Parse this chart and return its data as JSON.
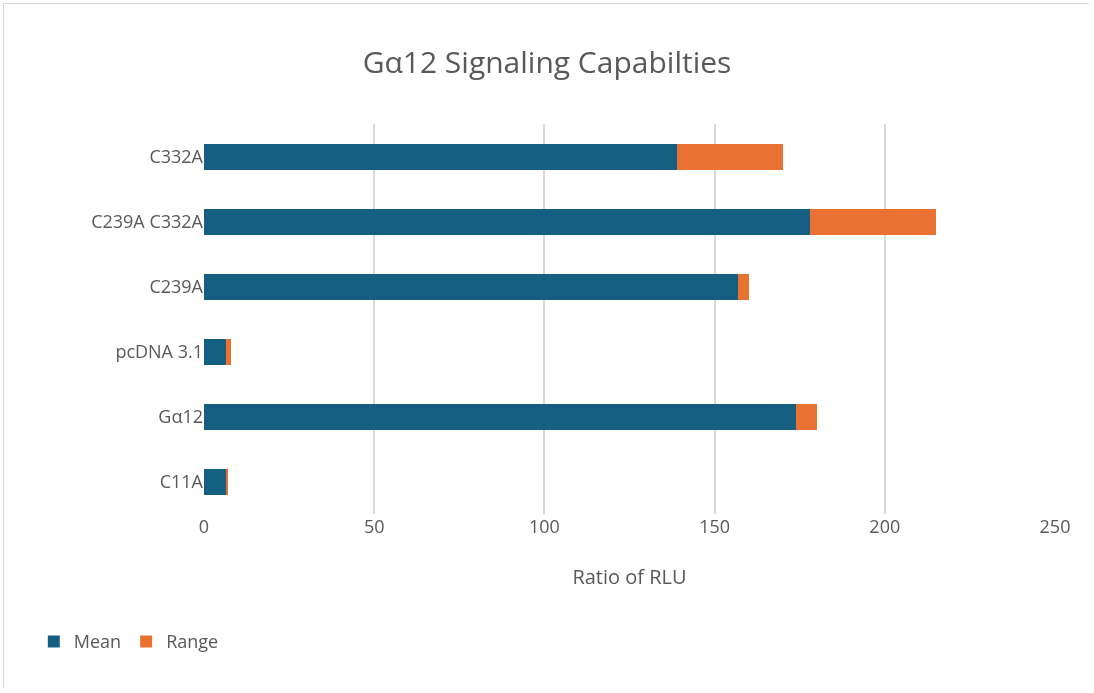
{
  "chart_data": {
    "type": "bar",
    "title": "Gα12 Signaling Capabilties",
    "xlabel": "Ratio of RLU",
    "orientation": "horizontal",
    "stacked": true,
    "categories": [
      "C332A",
      "C239A C332A",
      "C239A",
      "pcDNA 3.1",
      "Gα12",
      "C11A"
    ],
    "series": [
      {
        "name": "Mean",
        "color": "#156082",
        "values": [
          139,
          178,
          157,
          6.5,
          174,
          6.5
        ]
      },
      {
        "name": "Range",
        "color": "#e97132",
        "values": [
          31,
          37,
          3,
          1.5,
          6,
          0.5
        ]
      }
    ],
    "xlim": [
      0,
      250
    ],
    "xticks": [
      0,
      50,
      100,
      150,
      200,
      250
    ],
    "grid": "x",
    "legend": "bottom left"
  }
}
